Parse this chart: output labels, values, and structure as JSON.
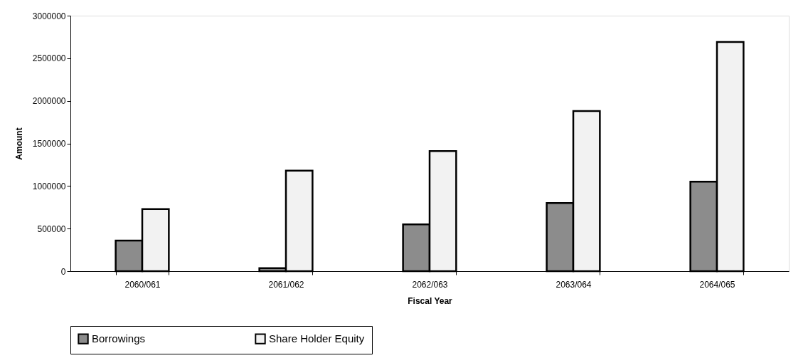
{
  "chart_data": {
    "type": "bar",
    "xlabel": "Fiscal Year",
    "ylabel": "Amount",
    "categories": [
      "2060/061",
      "2061/062",
      "2062/063",
      "2063/064",
      "2064/065"
    ],
    "series": [
      {
        "name": "Borrowings",
        "color": "#8c8c8c",
        "values": [
          360000,
          35000,
          550000,
          800000,
          1050000
        ]
      },
      {
        "name": "Share Holder Equity",
        "color": "#f2f2f2",
        "values": [
          730000,
          1180000,
          1410000,
          1880000,
          2690000
        ]
      }
    ],
    "ylim": [
      0,
      3000000
    ],
    "yticks": [
      0,
      500000,
      1000000,
      1500000,
      2000000,
      2500000,
      3000000
    ],
    "grid": false,
    "legend": "bottom"
  }
}
